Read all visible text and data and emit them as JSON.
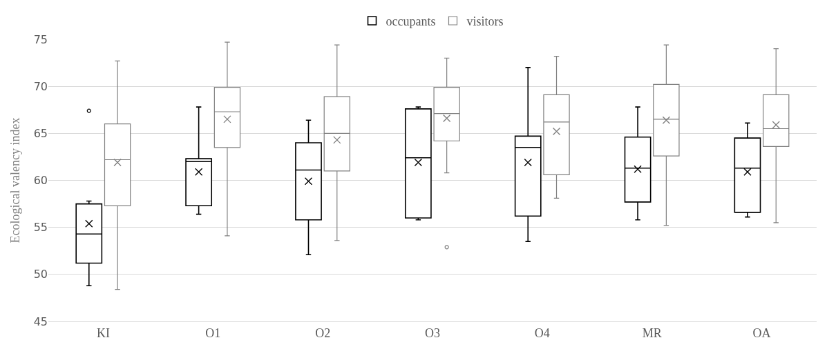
{
  "chart_data": {
    "type": "box",
    "ylabel": "Ecological valency index",
    "categories": [
      "KI",
      "O1",
      "O2",
      "O3",
      "O4",
      "MR",
      "OA"
    ],
    "ylim": [
      45,
      75
    ],
    "yticks": [
      45,
      50,
      55,
      60,
      65,
      70,
      75
    ],
    "grid": "y",
    "legend": "top",
    "marker": "cross",
    "series": [
      {
        "name": "occupants",
        "color": "#000000",
        "boxes": [
          {
            "low": 48.8,
            "q1": 51.2,
            "median": 54.3,
            "q3": 57.5,
            "high": 57.8,
            "mean": 55.4,
            "outliers": [
              67.4
            ]
          },
          {
            "low": 56.4,
            "q1": 57.3,
            "median": 62.0,
            "q3": 62.3,
            "high": 67.8,
            "mean": 60.9
          },
          {
            "low": 52.1,
            "q1": 55.8,
            "median": 61.1,
            "q3": 64.0,
            "high": 66.4,
            "mean": 59.9
          },
          {
            "low": 55.8,
            "q1": 56.0,
            "median": 62.4,
            "q3": 67.6,
            "high": 67.8,
            "mean": 61.9
          },
          {
            "low": 53.5,
            "q1": 56.2,
            "median": 63.5,
            "q3": 64.7,
            "high": 72.0,
            "mean": 61.9
          },
          {
            "low": 55.8,
            "q1": 57.7,
            "median": 61.3,
            "q3": 64.6,
            "high": 67.8,
            "mean": 61.2
          },
          {
            "low": 56.1,
            "q1": 56.6,
            "median": 61.3,
            "q3": 64.5,
            "high": 66.1,
            "mean": 60.9
          }
        ]
      },
      {
        "name": "visitors",
        "color": "#808080",
        "boxes": [
          {
            "low": 48.4,
            "q1": 57.3,
            "median": 62.2,
            "q3": 66.0,
            "high": 72.7,
            "mean": 61.9
          },
          {
            "low": 54.1,
            "q1": 63.5,
            "median": 67.3,
            "q3": 69.9,
            "high": 74.7,
            "mean": 66.5
          },
          {
            "low": 53.6,
            "q1": 61.0,
            "median": 65.0,
            "q3": 68.9,
            "high": 74.4,
            "mean": 64.3
          },
          {
            "low": 60.8,
            "q1": 64.2,
            "median": 67.1,
            "q3": 69.9,
            "high": 73.0,
            "mean": 66.6,
            "outliers": [
              52.9
            ]
          },
          {
            "low": 58.1,
            "q1": 60.6,
            "median": 66.2,
            "q3": 69.1,
            "high": 73.2,
            "mean": 65.2
          },
          {
            "low": 55.2,
            "q1": 62.6,
            "median": 66.5,
            "q3": 70.2,
            "high": 74.4,
            "mean": 66.4
          },
          {
            "low": 55.5,
            "q1": 63.6,
            "median": 65.5,
            "q3": 69.1,
            "high": 74.0,
            "mean": 65.9
          }
        ]
      }
    ]
  }
}
